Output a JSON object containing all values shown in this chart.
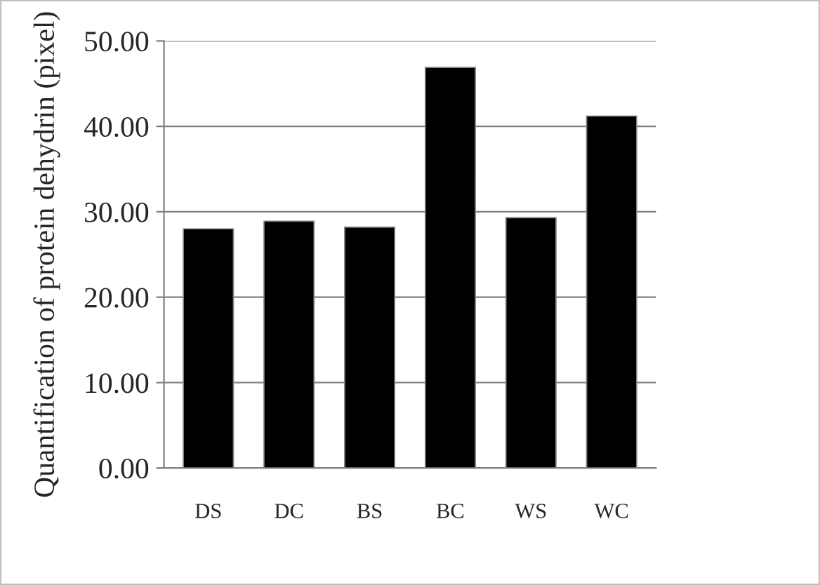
{
  "chart_data": {
    "type": "bar",
    "ylabel": "Quantification of protein dehydrin (pixel)",
    "categories": [
      "DS",
      "DC",
      "BS",
      "BC",
      "WS",
      "WC"
    ],
    "values": [
      28.0,
      28.9,
      28.2,
      46.9,
      29.3,
      41.2
    ],
    "color": "#000000",
    "ylim": [
      0,
      50
    ],
    "yticks": [
      {
        "value": 0,
        "label": "0.00"
      },
      {
        "value": 10,
        "label": "10.00"
      },
      {
        "value": 20,
        "label": "20.00"
      },
      {
        "value": 30,
        "label": "30.00"
      },
      {
        "value": 40,
        "label": "40.00"
      },
      {
        "value": 50,
        "label": "50.00"
      }
    ],
    "grid": "y",
    "legend": false
  }
}
